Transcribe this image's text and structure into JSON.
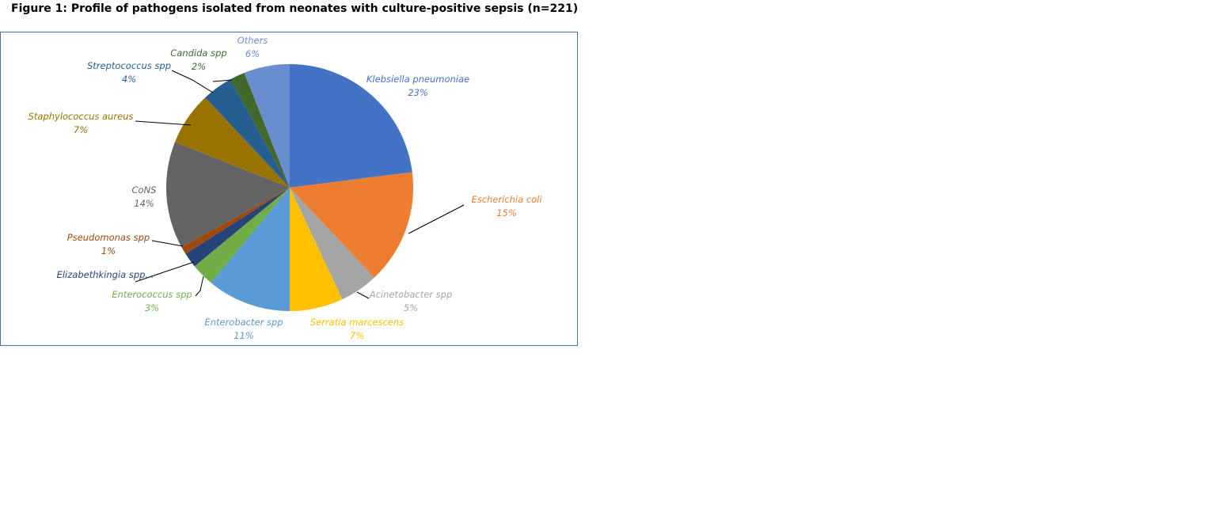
{
  "figure_title": "Figure 1: Profile of pathogens isolated from neonates with culture-positive sepsis (n=221)",
  "chart_data": {
    "type": "pie",
    "title": "",
    "start": "top, clockwise",
    "slices": [
      {
        "name": "Klebsiella pneumoniae",
        "value": 23,
        "pct_label": "23%",
        "color": "#4472C4",
        "label_color": "#4472C4"
      },
      {
        "name": "Escherichia coli",
        "value": 15,
        "pct_label": "15%",
        "color": "#ED7D31",
        "label_color": "#ED7D31"
      },
      {
        "name": "Acinetobacter spp",
        "value": 5,
        "pct_label": "5%",
        "color": "#A5A5A5",
        "label_color": "#A5A5A5"
      },
      {
        "name": "Serratia marcescens",
        "value": 7,
        "pct_label": "7%",
        "color": "#FFC000",
        "label_color": "#FFC000"
      },
      {
        "name": "Enterobacter spp",
        "value": 11,
        "pct_label": "11%",
        "color": "#5B9BD5",
        "label_color": "#5B9BD5"
      },
      {
        "name": "Enterococcus spp",
        "value": 3,
        "pct_label": "3%",
        "color": "#70AD47",
        "label_color": "#70AD47"
      },
      {
        "name": "Elizabethkingia spp...",
        "value": 2,
        "pct_label": "",
        "color": "#264478",
        "label_color": "#264478"
      },
      {
        "name": "Pseudomonas spp",
        "value": 1,
        "pct_label": "1%",
        "color": "#9E480E",
        "label_color": "#9E480E"
      },
      {
        "name": "CoNS",
        "value": 14,
        "pct_label": "14%",
        "color": "#636363",
        "label_color": "#636363"
      },
      {
        "name": "Staphylococcus aureus",
        "value": 7,
        "pct_label": "7%",
        "color": "#997300",
        "label_color": "#997300"
      },
      {
        "name": "Streptococcus spp",
        "value": 4,
        "pct_label": "4%",
        "color": "#255E91",
        "label_color": "#255E91"
      },
      {
        "name": "Candida spp",
        "value": 2,
        "pct_label": "2%",
        "color": "#43682B",
        "label_color": "#43682B"
      },
      {
        "name": "Others",
        "value": 6,
        "pct_label": "6%",
        "color": "#698ED0",
        "label_color": "#698ED0"
      }
    ]
  }
}
